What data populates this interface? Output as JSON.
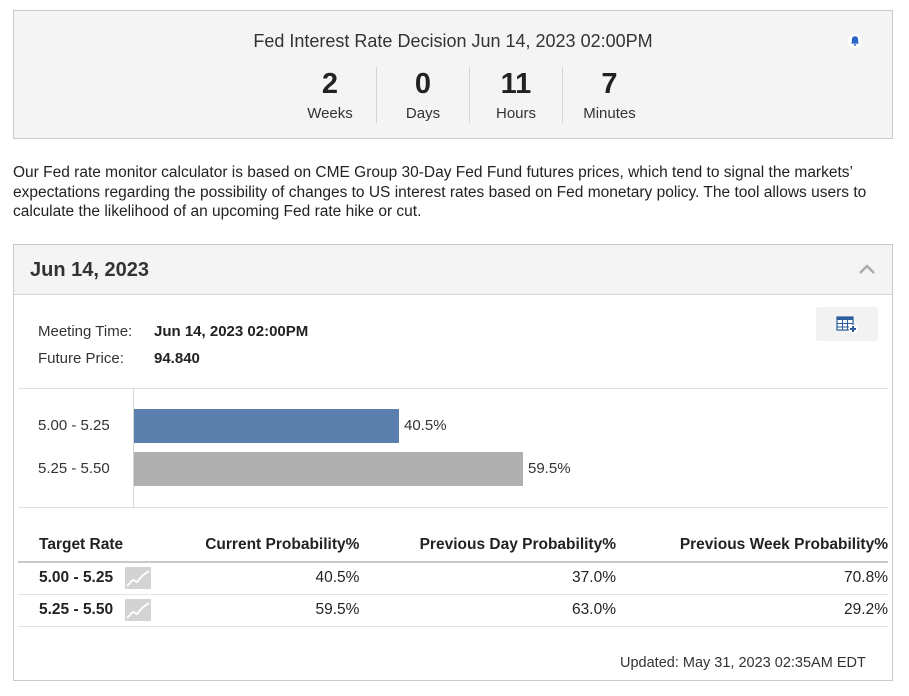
{
  "countdown": {
    "title": "Fed Interest Rate Decision Jun 14, 2023 02:00PM",
    "units": [
      {
        "value": "2",
        "label": "Weeks"
      },
      {
        "value": "0",
        "label": "Days"
      },
      {
        "value": "11",
        "label": "Hours"
      },
      {
        "value": "7",
        "label": "Minutes"
      }
    ],
    "alert_icon": "bell-icon"
  },
  "description": "Our Fed rate monitor calculator is based on CME Group 30-Day Fed Fund futures prices, which tend to signal the markets’ expectations regarding the possibility of changes to US interest rates based on Fed monetary policy. The tool allows users to calculate the likelihood of an upcoming Fed rate hike or cut.",
  "panel": {
    "title": "Jun 14, 2023",
    "collapse_icon": "chevron-up-icon",
    "export_icon": "table-add-icon",
    "meeting_time_label": "Meeting Time:",
    "meeting_time_value": "Jun 14, 2023 02:00PM",
    "future_price_label": "Future Price:",
    "future_price_value": "94.840",
    "updated": "Updated: May 31, 2023 02:35AM EDT"
  },
  "chart_data": {
    "type": "bar",
    "orientation": "horizontal",
    "categories": [
      "5.00 - 5.25",
      "5.25 - 5.50"
    ],
    "values": [
      40.5,
      59.5
    ],
    "value_labels": [
      "40.5%",
      "59.5%"
    ],
    "colors": [
      "#5b7fad",
      "#b0b0b0"
    ],
    "xlim": [
      0,
      100
    ]
  },
  "table": {
    "headers": [
      "Target Rate",
      "Current Probability%",
      "Previous Day Probability%",
      "Previous Week Probability%"
    ],
    "rows": [
      {
        "rate": "5.00 - 5.25",
        "current": "40.5%",
        "previous_day": "37.0%",
        "previous_week": "70.8%"
      },
      {
        "rate": "5.25 - 5.50",
        "current": "59.5%",
        "previous_day": "63.0%",
        "previous_week": "29.2%"
      }
    ],
    "row_icon": "sparkline-chart-icon"
  }
}
